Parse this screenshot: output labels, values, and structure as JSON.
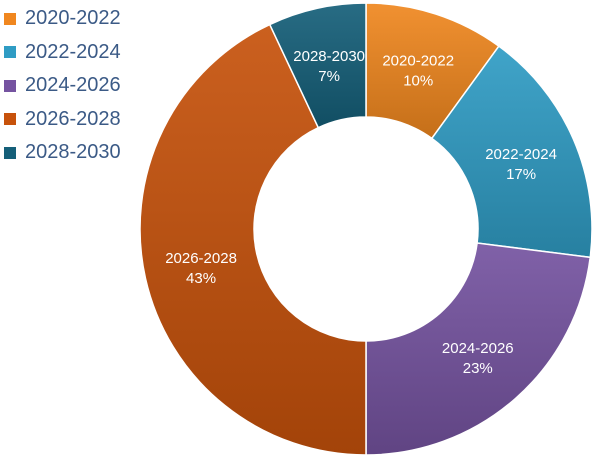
{
  "chart_data": {
    "type": "pie",
    "style": "donut",
    "title": "",
    "categories": [
      "2020-2022",
      "2022-2024",
      "2024-2026",
      "2026-2028",
      "2028-2030"
    ],
    "values": [
      10,
      17,
      23,
      43,
      7
    ],
    "value_labels": [
      "10%",
      "17%",
      "23%",
      "43%",
      "7%"
    ],
    "colors": [
      "#f0871f",
      "#2f9cc4",
      "#7553a0",
      "#c7520b",
      "#155f79"
    ],
    "legend": "left",
    "data_labels": true
  }
}
